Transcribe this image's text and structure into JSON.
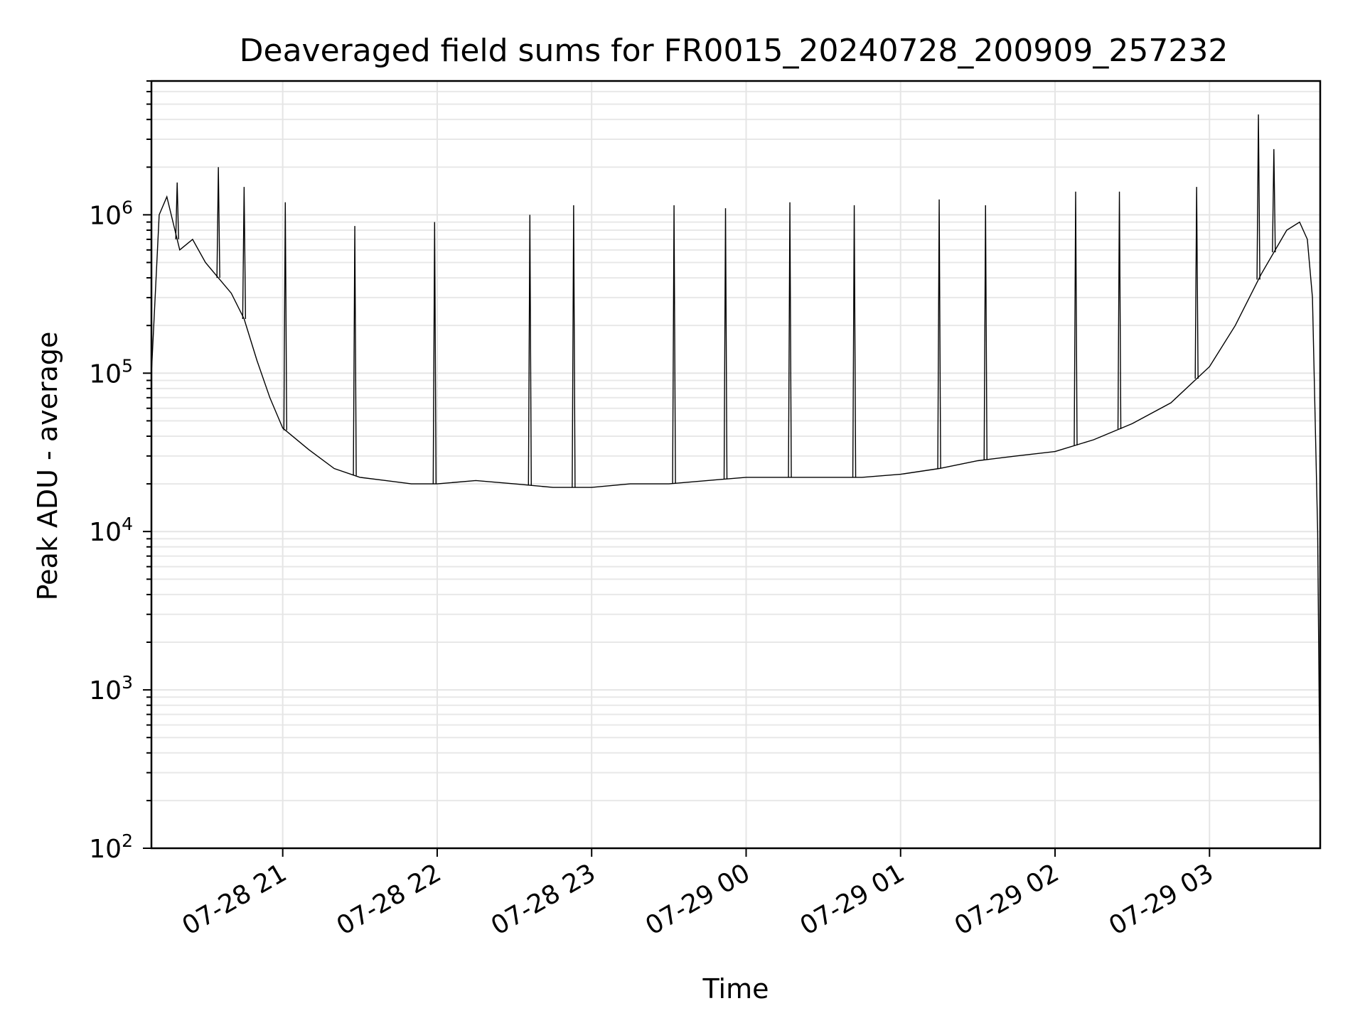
{
  "chart_data": {
    "type": "line",
    "title": "Deaveraged field sums for FR0015_20240728_200909_257232",
    "xlabel": "Time",
    "ylabel": "Peak ADU - average",
    "yscale": "log",
    "ylim": [
      100,
      7000000
    ],
    "xlim": [
      "2024-07-28 20:09",
      "2024-07-29 03:43"
    ],
    "grid": true,
    "x_ticks": [
      {
        "value": "2024-07-28 21:00",
        "label": "07-28 21"
      },
      {
        "value": "2024-07-28 22:00",
        "label": "07-28 22"
      },
      {
        "value": "2024-07-28 23:00",
        "label": "07-28 23"
      },
      {
        "value": "2024-07-29 00:00",
        "label": "07-29 00"
      },
      {
        "value": "2024-07-29 01:00",
        "label": "07-29 01"
      },
      {
        "value": "2024-07-29 02:00",
        "label": "07-29 02"
      },
      {
        "value": "2024-07-29 03:00",
        "label": "07-29 03"
      }
    ],
    "y_ticks": [
      {
        "value": 100,
        "base": "10",
        "exp": "2"
      },
      {
        "value": 1000,
        "base": "10",
        "exp": "3"
      },
      {
        "value": 10000,
        "base": "10",
        "exp": "4"
      },
      {
        "value": 100000,
        "base": "10",
        "exp": "5"
      },
      {
        "value": 1000000,
        "base": "10",
        "exp": "6"
      }
    ],
    "series": [
      {
        "color": "#000000",
        "x": [
          "2024-07-28 20:09",
          "2024-07-28 20:12",
          "2024-07-28 20:15",
          "2024-07-28 20:20",
          "2024-07-28 20:25",
          "2024-07-28 20:30",
          "2024-07-28 20:35",
          "2024-07-28 20:40",
          "2024-07-28 20:45",
          "2024-07-28 20:50",
          "2024-07-28 20:55",
          "2024-07-28 21:00",
          "2024-07-28 21:10",
          "2024-07-28 21:20",
          "2024-07-28 21:30",
          "2024-07-28 21:40",
          "2024-07-28 21:50",
          "2024-07-28 22:00",
          "2024-07-28 22:15",
          "2024-07-28 22:30",
          "2024-07-28 22:45",
          "2024-07-28 23:00",
          "2024-07-28 23:15",
          "2024-07-28 23:30",
          "2024-07-28 23:45",
          "2024-07-29 00:00",
          "2024-07-29 00:15",
          "2024-07-29 00:30",
          "2024-07-29 00:45",
          "2024-07-29 01:00",
          "2024-07-29 01:15",
          "2024-07-29 01:30",
          "2024-07-29 01:45",
          "2024-07-29 02:00",
          "2024-07-29 02:15",
          "2024-07-29 02:30",
          "2024-07-29 02:45",
          "2024-07-29 03:00",
          "2024-07-29 03:10",
          "2024-07-29 03:20",
          "2024-07-29 03:30",
          "2024-07-29 03:35",
          "2024-07-29 03:38",
          "2024-07-29 03:40",
          "2024-07-29 03:42",
          "2024-07-29 03:43"
        ],
        "y": [
          100000,
          1000000,
          1300000,
          600000,
          700000,
          500000,
          400000,
          320000,
          220000,
          120000,
          70000,
          45000,
          33000,
          25000,
          22000,
          21000,
          20000,
          20000,
          21000,
          20000,
          19000,
          19000,
          20000,
          20000,
          21000,
          22000,
          22000,
          22000,
          22000,
          23000,
          25000,
          28000,
          30000,
          32000,
          38000,
          48000,
          65000,
          110000,
          200000,
          420000,
          800000,
          900000,
          700000,
          300000,
          10000,
          150
        ]
      }
    ],
    "spikes": [
      {
        "x": "2024-07-28 20:19",
        "y": 1600000
      },
      {
        "x": "2024-07-28 20:35",
        "y": 2000000
      },
      {
        "x": "2024-07-28 20:45",
        "y": 1500000
      },
      {
        "x": "2024-07-28 21:01",
        "y": 1200000
      },
      {
        "x": "2024-07-28 21:28",
        "y": 850000
      },
      {
        "x": "2024-07-28 21:59",
        "y": 900000
      },
      {
        "x": "2024-07-28 22:36",
        "y": 1000000
      },
      {
        "x": "2024-07-28 22:53",
        "y": 1150000
      },
      {
        "x": "2024-07-28 23:32",
        "y": 1150000
      },
      {
        "x": "2024-07-28 23:52",
        "y": 1100000
      },
      {
        "x": "2024-07-29 00:17",
        "y": 1200000
      },
      {
        "x": "2024-07-29 00:42",
        "y": 1150000
      },
      {
        "x": "2024-07-29 01:15",
        "y": 1250000
      },
      {
        "x": "2024-07-29 01:33",
        "y": 1150000
      },
      {
        "x": "2024-07-29 02:08",
        "y": 1400000
      },
      {
        "x": "2024-07-29 02:25",
        "y": 1400000
      },
      {
        "x": "2024-07-29 02:55",
        "y": 1500000
      },
      {
        "x": "2024-07-29 03:19",
        "y": 4300000
      },
      {
        "x": "2024-07-29 03:25",
        "y": 2600000
      }
    ]
  }
}
